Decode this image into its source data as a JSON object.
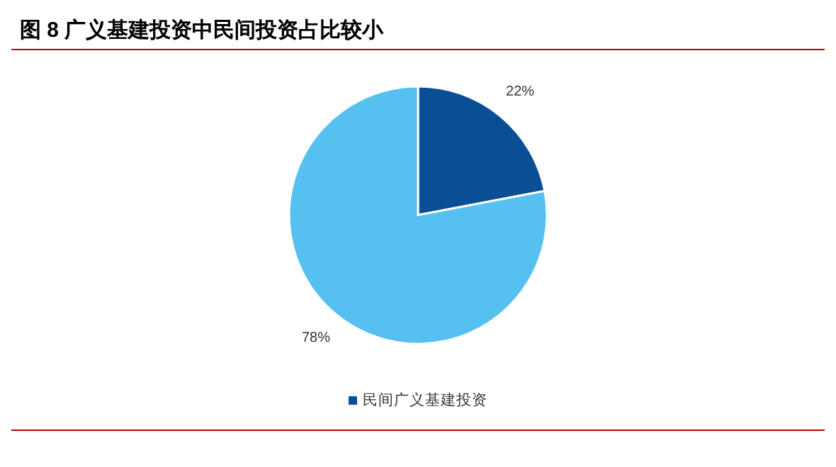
{
  "chart_data": {
    "type": "pie",
    "title": "图 8 广义基建投资中民间投资占比较小",
    "categories": [
      "民间广义基建投资",
      null
    ],
    "values": [
      22,
      78
    ],
    "colors": [
      "#0a4f96",
      "#56c1f0"
    ],
    "value_labels": [
      "22%",
      "78%"
    ],
    "legend": "bottom"
  }
}
